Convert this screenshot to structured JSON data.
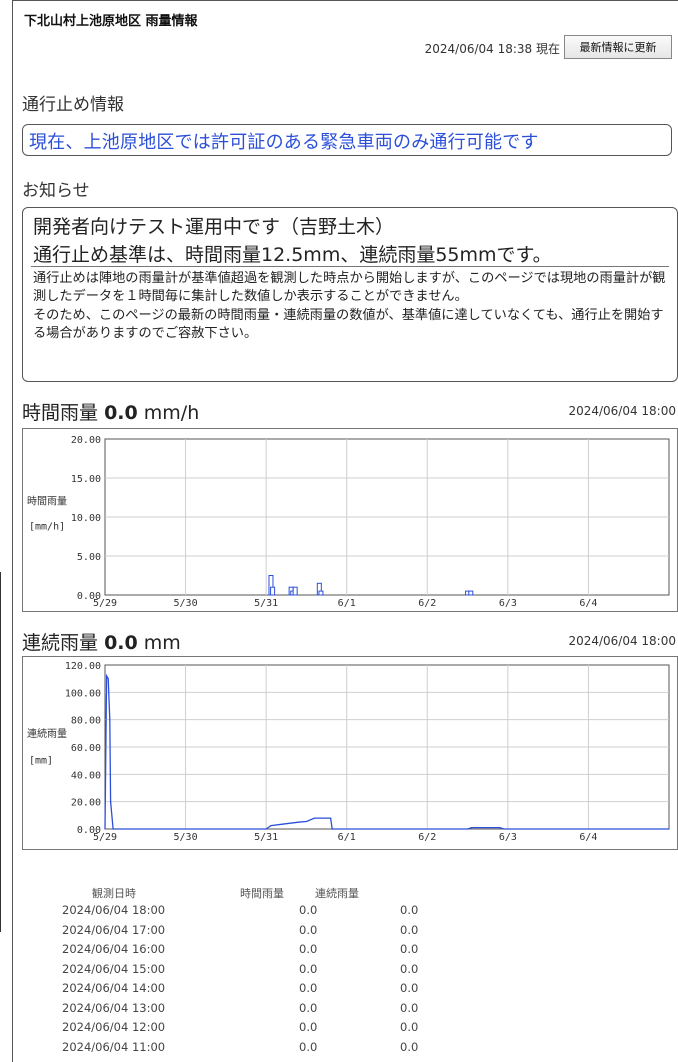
{
  "header": {
    "title": "下北山村上池原地区 雨量情報",
    "updated": "2024/06/04 18:38 現在",
    "refresh_label": "最新情報に更新"
  },
  "closure": {
    "heading": "通行止め情報",
    "message": "現在、上池原地区では許可証のある緊急車両のみ通行可能です"
  },
  "notice": {
    "heading": "お知らせ",
    "line1": "開発者向けテスト運用中です（吉野土木）",
    "line2": "通行止め基準は、時間雨量12.5mm、連続雨量55mmです。",
    "body": "通行止めは陣地の雨量計が基準値超過を観測した時点から開始しますが、このページでは現地の雨量計が観測したデータを１時間毎に集計した数値しか表示することができません。\nそのため、このページの最新の時間雨量・連続雨量の数値が、基準値に達していなくても、通行止を開始する場合がありますのでご容赦下さい。"
  },
  "hourly": {
    "label": "時間雨量",
    "value": "0.0",
    "unit": "mm/h",
    "date": "2024/06/04 18:00"
  },
  "cumulative": {
    "label": "連続雨量",
    "value": "0.0",
    "unit": "mm",
    "date": "2024/06/04 18:00"
  },
  "chart_data": [
    {
      "type": "bar",
      "ylabel": "時間雨量",
      "yunit": "[mm/h]",
      "ylim": [
        0,
        20
      ],
      "yticks": [
        "0.00",
        "5.00",
        "10.00",
        "15.00",
        "20.00"
      ],
      "xlim": [
        0,
        7
      ],
      "xticks": [
        "5/29",
        "5/30",
        "5/31",
        "6/1",
        "6/2",
        "6/3",
        "6/4"
      ],
      "grid": true,
      "color": "#2b4fd9",
      "x": [
        2.06,
        2.08,
        2.31,
        2.33,
        2.36,
        2.66,
        2.68,
        4.5,
        4.54
      ],
      "values": [
        2.5,
        1.0,
        1.0,
        0.5,
        1.0,
        1.5,
        0.5,
        0.5,
        0.5
      ]
    },
    {
      "type": "line",
      "ylabel": "連続雨量",
      "yunit": "[mm]",
      "ylim": [
        0,
        120
      ],
      "yticks": [
        "0.00",
        "20.00",
        "40.00",
        "60.00",
        "80.00",
        "100.00",
        "120.00"
      ],
      "xlim": [
        0,
        7
      ],
      "xticks": [
        "5/29",
        "5/30",
        "5/31",
        "6/1",
        "6/2",
        "6/3",
        "6/4"
      ],
      "grid": true,
      "color": "#2b4fd9",
      "x": [
        0.0,
        0.02,
        0.04,
        0.06,
        0.07,
        0.1,
        2.0,
        2.06,
        2.2,
        2.4,
        2.5,
        2.6,
        2.8,
        2.82,
        4.5,
        4.55,
        4.9,
        4.95,
        7.0
      ],
      "values": [
        0,
        112,
        110,
        80,
        20,
        0,
        0,
        2.5,
        3.5,
        5.0,
        5.5,
        8.0,
        8.0,
        0,
        0,
        1.0,
        1.0,
        0,
        0
      ]
    }
  ],
  "table": {
    "headers": [
      "観測日時",
      "時間雨量",
      "連続雨量"
    ],
    "rows": [
      [
        "2024/06/04 18:00",
        "0.0",
        "0.0"
      ],
      [
        "2024/06/04 17:00",
        "0.0",
        "0.0"
      ],
      [
        "2024/06/04 16:00",
        "0.0",
        "0.0"
      ],
      [
        "2024/06/04 15:00",
        "0.0",
        "0.0"
      ],
      [
        "2024/06/04 14:00",
        "0.0",
        "0.0"
      ],
      [
        "2024/06/04 13:00",
        "0.0",
        "0.0"
      ],
      [
        "2024/06/04 12:00",
        "0.0",
        "0.0"
      ],
      [
        "2024/06/04 11:00",
        "0.0",
        "0.0"
      ]
    ]
  }
}
